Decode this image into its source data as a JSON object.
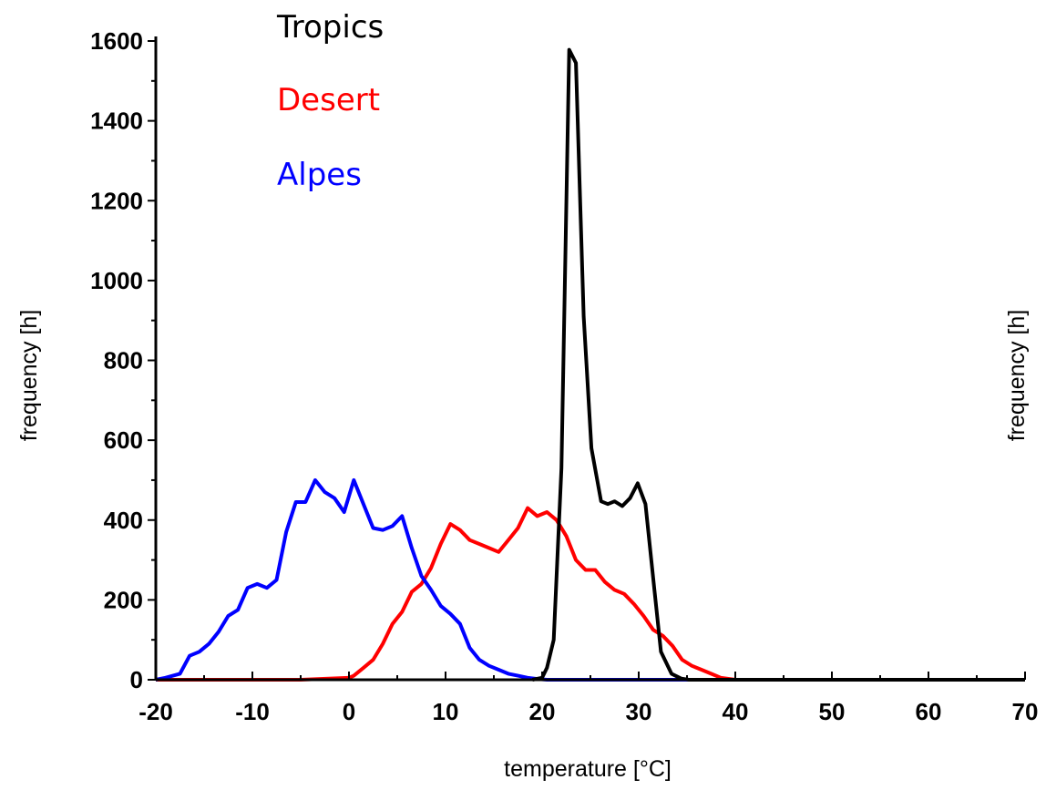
{
  "chart_data": {
    "type": "line",
    "title": "",
    "xlabel": "temperature [°C]",
    "ylabel": "frequency [h]",
    "ylabel_right": "frequency [h]",
    "xlim": [
      -20,
      70
    ],
    "ylim": [
      0,
      1600
    ],
    "xticks": [
      -20,
      -10,
      0,
      10,
      20,
      30,
      40,
      50,
      60,
      70
    ],
    "yticks": [
      0,
      200,
      400,
      600,
      800,
      1000,
      1200,
      1400,
      1600
    ],
    "grid": false,
    "legend_position": "top-left",
    "series": [
      {
        "name": "Tropics",
        "color": "#000000",
        "x": [
          19,
          20,
          20.5,
          21.2,
          22,
          22.8,
          23.5,
          24.3,
          25.1,
          26.1,
          26.8,
          27.5,
          28.3,
          29.1,
          29.9,
          30.7,
          31.6,
          32.3,
          33.4,
          34.4,
          35.2,
          36,
          36.8,
          37.5,
          70
        ],
        "values": [
          0,
          5,
          30,
          100,
          530,
          1578,
          1545,
          910,
          580,
          447,
          440,
          447,
          435,
          455,
          492,
          440,
          230,
          70,
          15,
          3,
          0,
          0,
          0,
          0,
          0
        ]
      },
      {
        "name": "Desert",
        "color": "#ff0000",
        "x": [
          -20,
          -5,
          0,
          0.5,
          1.5,
          2.5,
          3.5,
          4.5,
          5.5,
          6.5,
          7.5,
          8.5,
          9.5,
          10.5,
          11.5,
          12.5,
          13.5,
          14.5,
          15.5,
          16.5,
          17.5,
          18.5,
          19.5,
          20.5,
          21.5,
          22.5,
          23.5,
          24.5,
          25.5,
          26.5,
          27.5,
          28.5,
          29.5,
          30.5,
          31.5,
          32.5,
          33.5,
          34.5,
          35.5,
          36.5,
          37.5,
          38.5,
          40,
          70
        ],
        "values": [
          0,
          0,
          5,
          10,
          30,
          50,
          90,
          140,
          170,
          220,
          240,
          280,
          340,
          390,
          375,
          350,
          340,
          330,
          320,
          350,
          380,
          430,
          410,
          420,
          400,
          360,
          300,
          275,
          275,
          245,
          225,
          215,
          190,
          160,
          125,
          110,
          85,
          50,
          35,
          25,
          15,
          5,
          0,
          0
        ]
      },
      {
        "name": "Alpes",
        "color": "#0000ff",
        "x": [
          -20,
          -19,
          -17.5,
          -16.5,
          -15.5,
          -14.5,
          -13.5,
          -12.5,
          -11.5,
          -10.5,
          -9.5,
          -8.5,
          -7.5,
          -6.5,
          -5.5,
          -4.5,
          -3.5,
          -2.5,
          -1.5,
          -0.5,
          0.5,
          1.5,
          2.5,
          3.5,
          4.5,
          5.5,
          6.5,
          7.5,
          8.5,
          9.5,
          10.5,
          11.5,
          12.5,
          13.5,
          14.5,
          15.5,
          16.5,
          17.5,
          18.5,
          19.5,
          20.5,
          21.5,
          25,
          70
        ],
        "values": [
          0,
          5,
          15,
          60,
          70,
          90,
          120,
          160,
          175,
          230,
          240,
          230,
          250,
          370,
          445,
          445,
          500,
          470,
          455,
          420,
          500,
          440,
          380,
          375,
          385,
          410,
          330,
          260,
          225,
          185,
          165,
          140,
          80,
          50,
          35,
          25,
          15,
          10,
          5,
          2,
          0,
          0,
          0,
          0
        ]
      }
    ]
  }
}
